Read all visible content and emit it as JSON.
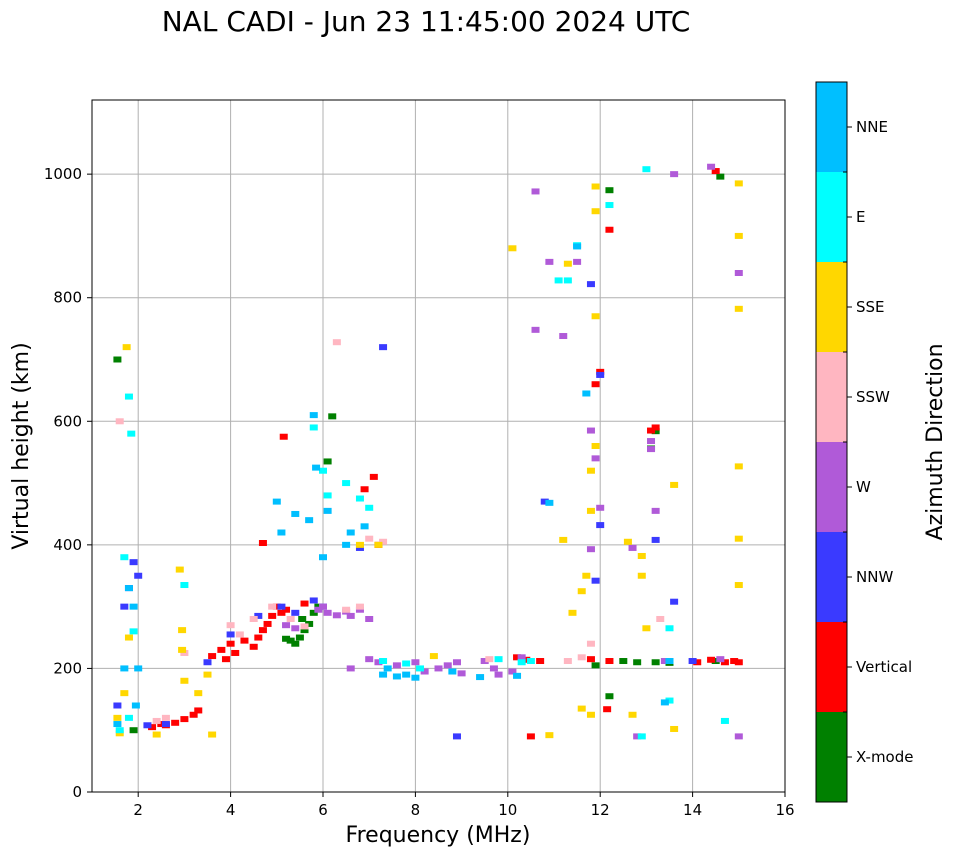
{
  "chart_data": {
    "type": "scatter",
    "title": "NAL CADI - Jun 23 11:45:00 2024 UTC",
    "xlabel": "Frequency (MHz)",
    "ylabel": "Virtual height (km)",
    "xlim": [
      1,
      16
    ],
    "ylim": [
      0,
      1120
    ],
    "xticks": [
      2,
      4,
      6,
      8,
      10,
      12,
      14,
      16
    ],
    "yticks": [
      0,
      200,
      400,
      600,
      800,
      1000
    ],
    "grid": true,
    "colorbar": {
      "label": "Azimuth Direction",
      "categories": [
        {
          "name": "X-mode",
          "color": "#008000"
        },
        {
          "name": "Vertical",
          "color": "#ff0000"
        },
        {
          "name": "NNW",
          "color": "#3a3aff"
        },
        {
          "name": "W",
          "color": "#b05ad8"
        },
        {
          "name": "SSW",
          "color": "#ffb6c1"
        },
        {
          "name": "SSE",
          "color": "#ffd700"
        },
        {
          "name": "E",
          "color": "#00ffff"
        },
        {
          "name": "NNE",
          "color": "#00bfff"
        }
      ]
    },
    "series": [
      {
        "name": "X-mode",
        "points": [
          [
            5.3,
            245
          ],
          [
            5.5,
            250
          ],
          [
            5.6,
            262
          ],
          [
            5.7,
            272
          ],
          [
            5.8,
            290
          ],
          [
            5.9,
            300
          ],
          [
            5.4,
            240
          ],
          [
            5.2,
            248
          ],
          [
            6.1,
            535
          ],
          [
            6.2,
            608
          ],
          [
            11.9,
            205
          ],
          [
            12.2,
            155
          ],
          [
            12.5,
            212
          ],
          [
            12.8,
            210
          ],
          [
            13.2,
            210
          ],
          [
            13.5,
            209
          ],
          [
            13.1,
            556
          ],
          [
            13.2,
            584
          ],
          [
            14.5,
            212
          ],
          [
            14.6,
            996
          ],
          [
            12.2,
            974
          ],
          [
            1.55,
            700
          ],
          [
            1.9,
            100
          ],
          [
            5.55,
            280
          ]
        ]
      },
      {
        "name": "Vertical",
        "points": [
          [
            2.3,
            105
          ],
          [
            2.5,
            110
          ],
          [
            2.6,
            108
          ],
          [
            2.8,
            112
          ],
          [
            3.0,
            118
          ],
          [
            3.2,
            125
          ],
          [
            3.3,
            132
          ],
          [
            3.6,
            220
          ],
          [
            3.8,
            230
          ],
          [
            3.9,
            215
          ],
          [
            4.0,
            240
          ],
          [
            4.1,
            225
          ],
          [
            4.3,
            245
          ],
          [
            4.5,
            235
          ],
          [
            4.6,
            250
          ],
          [
            4.7,
            262
          ],
          [
            4.8,
            272
          ],
          [
            4.9,
            285
          ],
          [
            5.0,
            300
          ],
          [
            5.1,
            290
          ],
          [
            5.15,
            575
          ],
          [
            5.2,
            295
          ],
          [
            5.6,
            305
          ],
          [
            6.9,
            490
          ],
          [
            7.1,
            510
          ],
          [
            7.2,
            400
          ],
          [
            10.2,
            218
          ],
          [
            10.4,
            214
          ],
          [
            10.7,
            212
          ],
          [
            10.5,
            90
          ],
          [
            11.8,
            215
          ],
          [
            11.9,
            660
          ],
          [
            12.0,
            680
          ],
          [
            12.2,
            910
          ],
          [
            12.15,
            134
          ],
          [
            12.2,
            212
          ],
          [
            13.1,
            585
          ],
          [
            13.2,
            590
          ],
          [
            14.1,
            210
          ],
          [
            14.4,
            214
          ],
          [
            14.7,
            210
          ],
          [
            14.9,
            212
          ],
          [
            15.0,
            210
          ],
          [
            14.5,
            1005
          ],
          [
            4.7,
            403
          ]
        ]
      },
      {
        "name": "NNW",
        "points": [
          [
            1.55,
            140
          ],
          [
            1.7,
            300
          ],
          [
            1.8,
            330
          ],
          [
            2.0,
            350
          ],
          [
            1.9,
            372
          ],
          [
            2.2,
            108
          ],
          [
            2.6,
            110
          ],
          [
            3.5,
            210
          ],
          [
            4.0,
            255
          ],
          [
            4.6,
            285
          ],
          [
            5.1,
            300
          ],
          [
            5.4,
            290
          ],
          [
            6.0,
            300
          ],
          [
            5.8,
            310
          ],
          [
            7.3,
            720
          ],
          [
            6.8,
            395
          ],
          [
            11.9,
            342
          ],
          [
            12.0,
            432
          ],
          [
            11.8,
            822
          ],
          [
            12.0,
            675
          ],
          [
            13.2,
            408
          ],
          [
            13.6,
            308
          ],
          [
            8.9,
            90
          ],
          [
            10.8,
            470
          ],
          [
            14.0,
            212
          ]
        ]
      },
      {
        "name": "W",
        "points": [
          [
            5.9,
            295
          ],
          [
            6.1,
            290
          ],
          [
            6.3,
            286
          ],
          [
            6.5,
            292
          ],
          [
            6.6,
            285
          ],
          [
            6.8,
            295
          ],
          [
            7.0,
            280
          ],
          [
            6.0,
            300
          ],
          [
            5.4,
            265
          ],
          [
            5.2,
            270
          ],
          [
            6.6,
            200
          ],
          [
            7.0,
            215
          ],
          [
            7.2,
            210
          ],
          [
            7.6,
            205
          ],
          [
            8.0,
            210
          ],
          [
            8.2,
            195
          ],
          [
            8.5,
            200
          ],
          [
            8.7,
            205
          ],
          [
            8.9,
            210
          ],
          [
            9.0,
            192
          ],
          [
            9.5,
            212
          ],
          [
            9.7,
            200
          ],
          [
            9.8,
            190
          ],
          [
            10.1,
            195
          ],
          [
            10.3,
            218
          ],
          [
            10.6,
            972
          ],
          [
            10.9,
            858
          ],
          [
            10.6,
            748
          ],
          [
            11.2,
            738
          ],
          [
            11.5,
            858
          ],
          [
            11.8,
            393
          ],
          [
            11.9,
            540
          ],
          [
            12.0,
            460
          ],
          [
            12.7,
            395
          ],
          [
            12.8,
            90
          ],
          [
            13.1,
            555
          ],
          [
            13.2,
            455
          ],
          [
            13.4,
            212
          ],
          [
            13.6,
            1000
          ],
          [
            14.4,
            1012
          ],
          [
            14.6,
            215
          ],
          [
            15.0,
            840
          ],
          [
            15.0,
            90
          ],
          [
            11.8,
            585
          ],
          [
            13.1,
            568
          ]
        ]
      },
      {
        "name": "SSW",
        "points": [
          [
            2.4,
            115
          ],
          [
            2.6,
            120
          ],
          [
            3.0,
            225
          ],
          [
            4.0,
            270
          ],
          [
            4.2,
            255
          ],
          [
            4.5,
            280
          ],
          [
            4.9,
            300
          ],
          [
            5.3,
            280
          ],
          [
            5.6,
            268
          ],
          [
            6.3,
            728
          ],
          [
            6.5,
            295
          ],
          [
            6.8,
            300
          ],
          [
            7.0,
            410
          ],
          [
            7.3,
            405
          ],
          [
            11.3,
            212
          ],
          [
            11.6,
            218
          ],
          [
            11.8,
            240
          ],
          [
            13.3,
            280
          ],
          [
            9.6,
            215
          ],
          [
            1.6,
            600
          ]
        ]
      },
      {
        "name": "SSE",
        "points": [
          [
            1.55,
            120
          ],
          [
            1.6,
            95
          ],
          [
            1.7,
            160
          ],
          [
            1.8,
            250
          ],
          [
            1.75,
            720
          ],
          [
            2.4,
            93
          ],
          [
            2.9,
            360
          ],
          [
            2.95,
            230
          ],
          [
            2.95,
            262
          ],
          [
            3.0,
            180
          ],
          [
            3.6,
            93
          ],
          [
            3.5,
            190
          ],
          [
            3.3,
            160
          ],
          [
            6.8,
            400
          ],
          [
            7.2,
            400
          ],
          [
            8.4,
            220
          ],
          [
            10.1,
            880
          ],
          [
            10.9,
            92
          ],
          [
            11.3,
            855
          ],
          [
            11.4,
            290
          ],
          [
            11.6,
            325
          ],
          [
            11.7,
            350
          ],
          [
            11.8,
            455
          ],
          [
            11.8,
            520
          ],
          [
            11.9,
            560
          ],
          [
            11.9,
            940
          ],
          [
            11.9,
            980
          ],
          [
            11.9,
            770
          ],
          [
            11.8,
            125
          ],
          [
            11.6,
            135
          ],
          [
            12.6,
            405
          ],
          [
            12.7,
            125
          ],
          [
            12.9,
            350
          ],
          [
            12.9,
            382
          ],
          [
            13.0,
            265
          ],
          [
            13.6,
            497
          ],
          [
            13.6,
            102
          ],
          [
            15.0,
            985
          ],
          [
            15.0,
            900
          ],
          [
            15.0,
            782
          ],
          [
            15.0,
            527
          ],
          [
            15.0,
            410
          ],
          [
            15.0,
            335
          ],
          [
            11.2,
            408
          ]
        ]
      },
      {
        "name": "E",
        "points": [
          [
            1.6,
            100
          ],
          [
            1.7,
            380
          ],
          [
            1.8,
            640
          ],
          [
            1.85,
            580
          ],
          [
            1.9,
            260
          ],
          [
            1.8,
            120
          ],
          [
            3.0,
            335
          ],
          [
            5.8,
            590
          ],
          [
            6.0,
            520
          ],
          [
            6.1,
            480
          ],
          [
            6.5,
            500
          ],
          [
            6.8,
            475
          ],
          [
            7.3,
            212
          ],
          [
            7.8,
            208
          ],
          [
            8.1,
            200
          ],
          [
            9.8,
            215
          ],
          [
            10.3,
            210
          ],
          [
            10.5,
            212
          ],
          [
            11.1,
            828
          ],
          [
            11.3,
            828
          ],
          [
            11.5,
            885
          ],
          [
            12.2,
            950
          ],
          [
            12.9,
            90
          ],
          [
            13.0,
            1008
          ],
          [
            13.5,
            265
          ],
          [
            13.5,
            148
          ],
          [
            14.7,
            115
          ],
          [
            7.0,
            460
          ]
        ]
      },
      {
        "name": "NNE",
        "points": [
          [
            1.55,
            110
          ],
          [
            1.7,
            200
          ],
          [
            1.8,
            330
          ],
          [
            1.9,
            300
          ],
          [
            2.0,
            200
          ],
          [
            1.95,
            140
          ],
          [
            5.1,
            420
          ],
          [
            5.4,
            450
          ],
          [
            5.7,
            440
          ],
          [
            5.8,
            610
          ],
          [
            5.85,
            525
          ],
          [
            6.0,
            380
          ],
          [
            6.1,
            455
          ],
          [
            6.5,
            400
          ],
          [
            6.6,
            420
          ],
          [
            6.9,
            430
          ],
          [
            7.3,
            190
          ],
          [
            7.4,
            200
          ],
          [
            7.6,
            187
          ],
          [
            7.8,
            190
          ],
          [
            8.0,
            185
          ],
          [
            8.8,
            195
          ],
          [
            9.4,
            186
          ],
          [
            10.2,
            188
          ],
          [
            10.9,
            468
          ],
          [
            11.5,
            883
          ],
          [
            11.7,
            645
          ],
          [
            13.5,
            212
          ],
          [
            13.4,
            145
          ],
          [
            5.0,
            470
          ]
        ]
      }
    ]
  }
}
